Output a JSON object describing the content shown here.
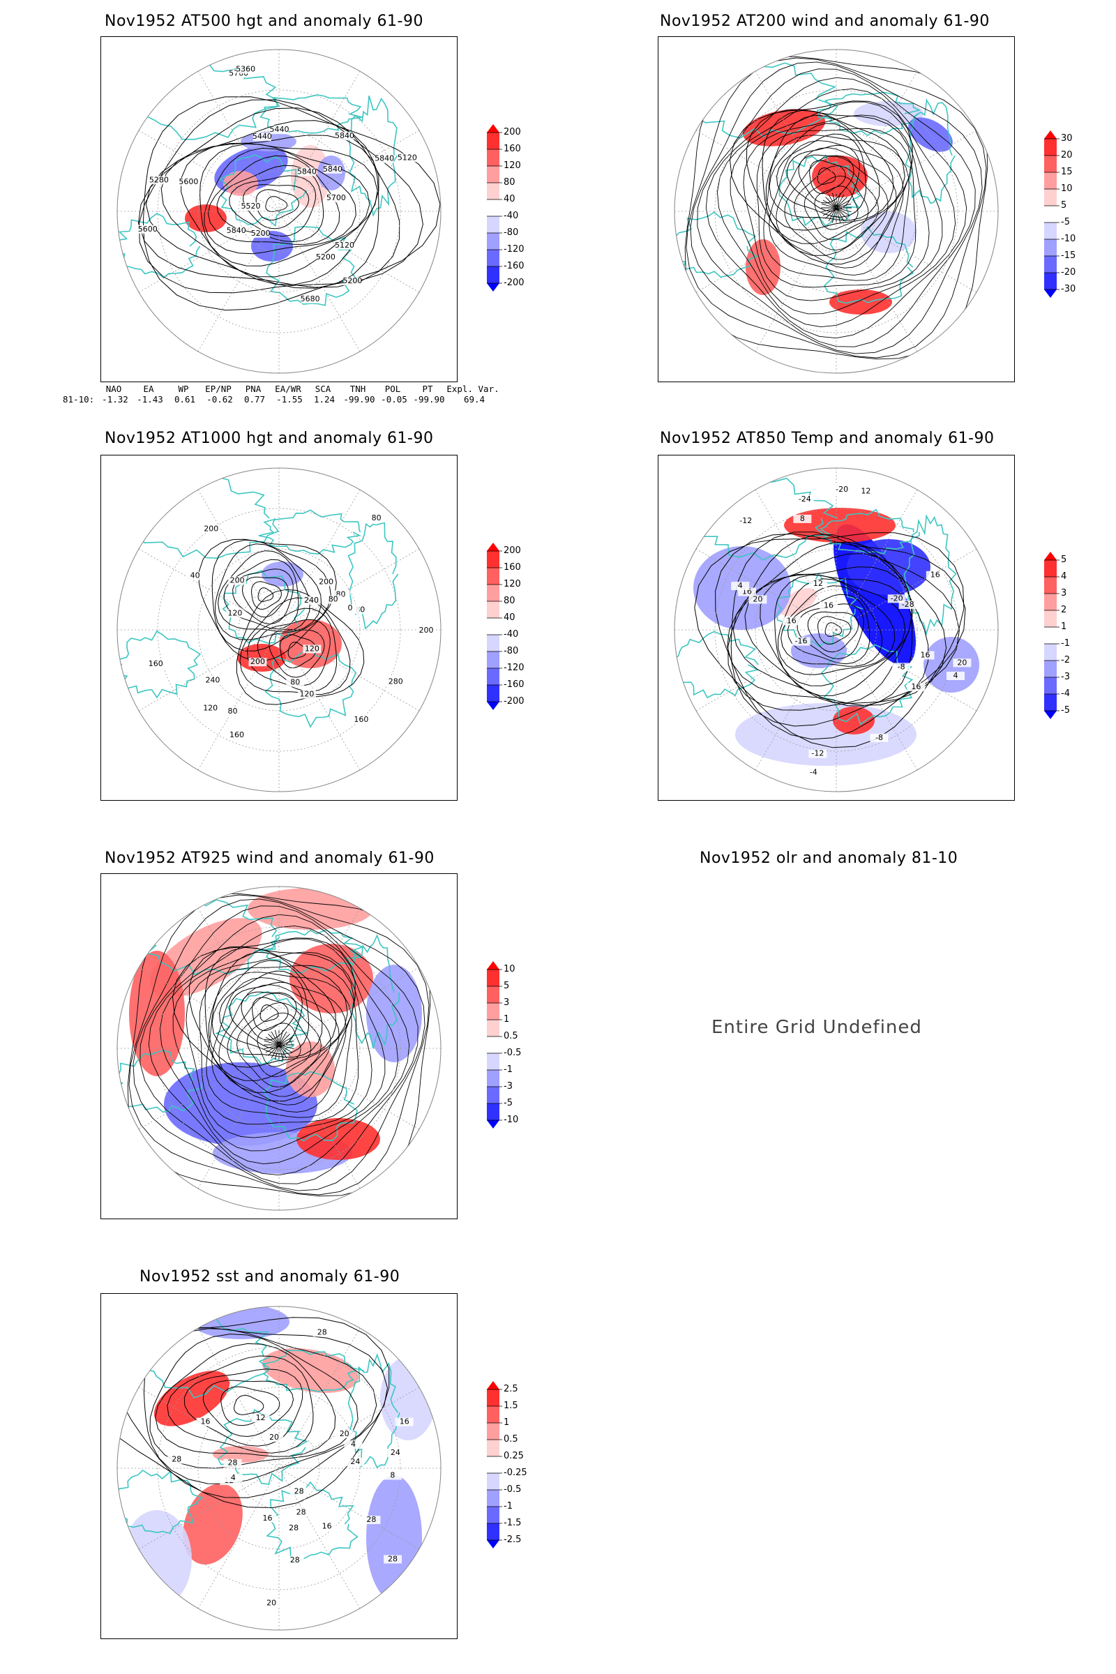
{
  "panels": [
    {
      "title": "Nov1952 AT500 hgt and anomaly 61-90",
      "colorbar": [
        "200",
        "160",
        "120",
        "80",
        "40",
        "-40",
        "-80",
        "-120",
        "-160",
        "-200"
      ]
    },
    {
      "title": "Nov1952 AT200 wind and anomaly 61-90",
      "colorbar": [
        "30",
        "20",
        "15",
        "10",
        "5",
        "-5",
        "-10",
        "-15",
        "-20",
        "-30"
      ]
    },
    {
      "title": "Nov1952 AT1000 hgt and anomaly 61-90",
      "colorbar": [
        "200",
        "160",
        "120",
        "80",
        "40",
        "-40",
        "-80",
        "-120",
        "-160",
        "-200"
      ]
    },
    {
      "title": "Nov1952 AT850 Temp and anomaly 61-90",
      "colorbar": [
        "5",
        "4",
        "3",
        "2",
        "1",
        "-1",
        "-2",
        "-3",
        "-4",
        "-5"
      ]
    },
    {
      "title": "Nov1952 AT925 wind and anomaly 61-90",
      "colorbar": [
        "10",
        "5",
        "3",
        "1",
        "0.5",
        "-0.5",
        "-1",
        "-3",
        "-5",
        "-10"
      ]
    },
    {
      "title": "Nov1952 olr and anomaly 81-10",
      "message": "Entire Grid Undefined"
    },
    {
      "title": "Nov1952 sst and anomaly 61-90",
      "colorbar": [
        "2.5",
        "1.5",
        "1",
        "0.5",
        "0.25",
        "-0.25",
        "-0.5",
        "-1",
        "-1.5",
        "-2.5"
      ]
    }
  ],
  "contour_labels": {
    "p500": [
      "5840",
      "5840",
      "5840",
      "5840",
      "5840",
      "5760",
      "5700",
      "5680",
      "5600",
      "5600",
      "5520",
      "5440",
      "5440",
      "5360",
      "5280",
      "5200",
      "5200",
      "5200",
      "5120",
      "5120"
    ],
    "p1000": [
      "80",
      "120",
      "160",
      "200",
      "160",
      "200",
      "240",
      "240",
      "280",
      "200",
      "160",
      "120",
      "80",
      "80",
      "120",
      "80",
      "80",
      "40",
      "0",
      "200",
      "120",
      "80",
      "200"
    ],
    "p850": [
      "16",
      "12",
      "8",
      "4",
      "20",
      "16",
      "16",
      "-8",
      "-12",
      "-16",
      "-20",
      "-24",
      "-28",
      "16",
      "16",
      "12",
      "20",
      "16",
      "-4",
      "-8",
      "-12",
      "-20",
      "4"
    ],
    "sst": [
      "28",
      "28",
      "24",
      "24",
      "20",
      "20",
      "16",
      "16",
      "12",
      "8",
      "4",
      "28",
      "28",
      "28",
      "28",
      "28",
      "28",
      "20",
      "16",
      "12",
      "4",
      "16",
      "28"
    ]
  },
  "teleconnections": {
    "headers": [
      "NAO",
      "EA",
      "WP",
      "EP/NP",
      "PNA",
      "EA/WR",
      "SCA",
      "TNH",
      "POL",
      "PT",
      "Expl. Var."
    ],
    "row_label": "81-10:",
    "values": [
      "-1.32",
      "-1.43",
      "0.61",
      "-0.62",
      "0.77",
      "-1.55",
      "1.24",
      "-99.90",
      "-0.05",
      "-99.90",
      "69.4"
    ]
  },
  "colors": {
    "coast": "#3cc6c2",
    "red_scale": [
      "#ff0000",
      "#ff3030",
      "#ff6060",
      "#ff9e9e",
      "#ffd0d0"
    ],
    "blue_scale": [
      "#d6d6ff",
      "#a0a0ff",
      "#6a6aff",
      "#3030ff",
      "#0000ff"
    ],
    "contour": "#000000",
    "grid": "#9a9a9a"
  }
}
